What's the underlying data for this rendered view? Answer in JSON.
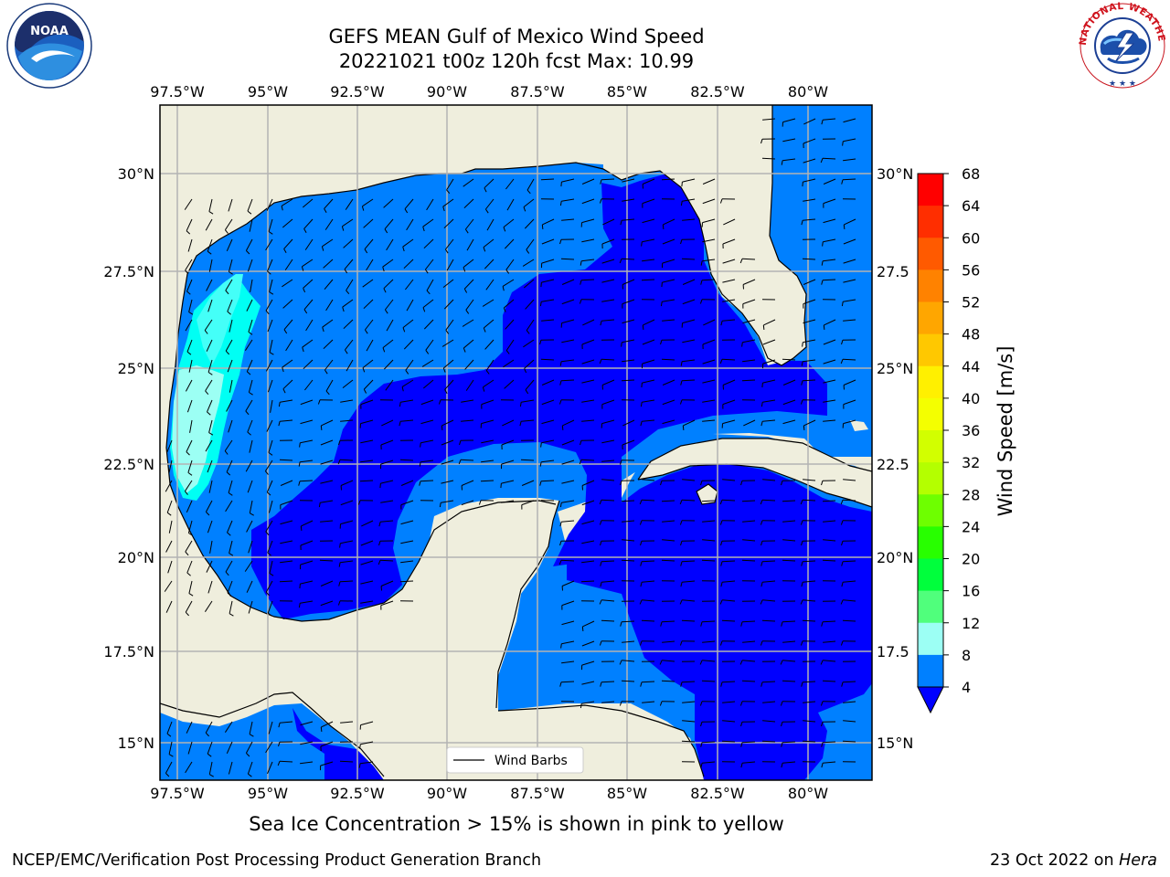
{
  "header": {
    "title_line1": "GEFS MEAN Gulf of Mexico Wind Speed",
    "title_line2": "20221021 t00z 120h fcst   Max: 10.99"
  },
  "map": {
    "lon_labels": [
      "97.5°W",
      "95°W",
      "92.5°W",
      "90°W",
      "87.5°W",
      "85°W",
      "82.5°W",
      "80°W"
    ],
    "lat_labels_left": [
      "30°N",
      "27.5°N",
      "25°N",
      "22.5°N",
      "20°N",
      "17.5°N",
      "15°N"
    ],
    "lat_labels_right": [
      "30°N",
      "27.5",
      "25°N",
      "22.5",
      "20°N",
      "17.5",
      "15°N"
    ],
    "legend_label": "Wind Barbs",
    "land_color": "#efeedd",
    "grid_color": "#b3b3b3"
  },
  "colorbar": {
    "label": "Wind Speed [m/s]",
    "ticks": [
      "68",
      "64",
      "60",
      "56",
      "52",
      "48",
      "44",
      "40",
      "36",
      "32",
      "28",
      "24",
      "20",
      "16",
      "12",
      "8",
      "4"
    ],
    "colors": [
      "#ff0000",
      "#ff2e00",
      "#ff5a00",
      "#ff8200",
      "#ffa600",
      "#ffc800",
      "#fff000",
      "#f4ff00",
      "#d2ff00",
      "#b4ff00",
      "#6eff00",
      "#28ff00",
      "#00ff3c",
      "#50ff7c",
      "#9cfff4",
      "#44fff8",
      "#00fff4",
      "#0080ff"
    ],
    "extend_color": "#0000ff"
  },
  "note": "Sea Ice Concentration > 15% is shown in pink to yellow",
  "footer": {
    "left": "NCEP/EMC/Verification Post Processing Product Generation Branch",
    "right_prefix": "23 Oct 2022 on ",
    "right_host": "Hera"
  },
  "logos": {
    "left_text": "NOAA",
    "right_text": "NATIONAL WEATHER SERVICE"
  }
}
